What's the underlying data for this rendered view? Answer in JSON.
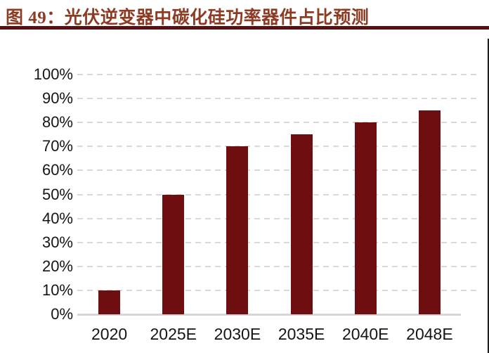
{
  "figure": {
    "title": "图 49：光伏逆变器中碳化硅功率器件占比预测"
  },
  "colors": {
    "title_text": "#8e3b23",
    "title_rule": "#5a1013",
    "bar": "#6f0e11",
    "gridline": "#d9d9d9",
    "axis_line": "#d6d6d6",
    "axis_text": "#151515",
    "right_border": "#1f1f1f"
  },
  "chart_data": {
    "type": "bar",
    "title": "图 49：光伏逆变器中碳化硅功率器件占比预测",
    "categories": [
      "2020",
      "2025E",
      "2030E",
      "2035E",
      "2040E",
      "2048E"
    ],
    "values": [
      10,
      50,
      70,
      75,
      80,
      85
    ],
    "unit": "%",
    "xlabel": "",
    "ylabel": "",
    "ylim": [
      0,
      100
    ],
    "ytick_step": 10,
    "yticks": [
      "100%",
      "90%",
      "80%",
      "70%",
      "60%",
      "50%",
      "40%",
      "30%",
      "20%",
      "10%",
      "0%"
    ],
    "grid": "horizontal-dashed",
    "legend": "none",
    "bar_color": "#6f0e11"
  }
}
